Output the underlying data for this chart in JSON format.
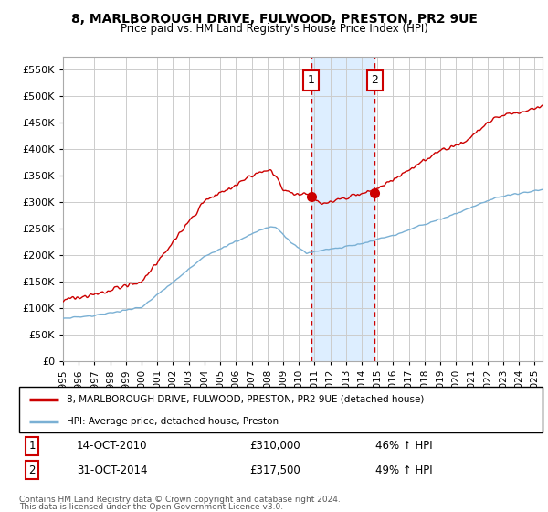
{
  "title": "8, MARLBOROUGH DRIVE, FULWOOD, PRESTON, PR2 9UE",
  "subtitle": "Price paid vs. HM Land Registry's House Price Index (HPI)",
  "yticks": [
    0,
    50000,
    100000,
    150000,
    200000,
    250000,
    300000,
    350000,
    400000,
    450000,
    500000,
    550000
  ],
  "xmin": 1995.0,
  "xmax": 2025.5,
  "ymin": 0,
  "ymax": 575000,
  "sale1_x": 2010.79,
  "sale1_y": 310000,
  "sale1_label": "1",
  "sale1_date": "14-OCT-2010",
  "sale1_price": "£310,000",
  "sale1_hpi": "46% ↑ HPI",
  "sale2_x": 2014.83,
  "sale2_y": 317500,
  "sale2_label": "2",
  "sale2_date": "31-OCT-2014",
  "sale2_price": "£317,500",
  "sale2_hpi": "49% ↑ HPI",
  "red_line_color": "#cc0000",
  "blue_line_color": "#7ab0d4",
  "shaded_color": "#ddeeff",
  "grid_color": "#cccccc",
  "background_color": "#ffffff",
  "legend_label_red": "8, MARLBOROUGH DRIVE, FULWOOD, PRESTON, PR2 9UE (detached house)",
  "legend_label_blue": "HPI: Average price, detached house, Preston",
  "footer1": "Contains HM Land Registry data © Crown copyright and database right 2024.",
  "footer2": "This data is licensed under the Open Government Licence v3.0."
}
